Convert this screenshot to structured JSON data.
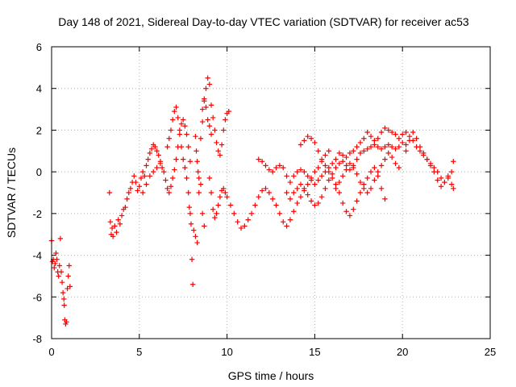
{
  "chart_data": {
    "type": "scatter",
    "title": "Day 148 of 2021, Sidereal Day-to-day VTEC variation (SDTVAR) for receiver ac53",
    "xlabel": "GPS time / hours",
    "ylabel": "SDTVAR / TECUs",
    "xlim": [
      0,
      25
    ],
    "ylim": [
      -8,
      6
    ],
    "xticks": [
      0,
      5,
      10,
      15,
      20,
      25
    ],
    "xtick_labels": [
      "0",
      "5",
      "10",
      "15",
      "20",
      "25"
    ],
    "yticks": [
      -8,
      -6,
      -4,
      -2,
      0,
      2,
      4,
      6
    ],
    "ytick_labels": [
      "-8",
      "-6",
      "-4",
      "-2",
      "0",
      "2",
      "4",
      "6"
    ],
    "grid": true,
    "marker": "+",
    "series": [
      {
        "name": "SDTVAR",
        "color": "#ff0000",
        "points": [
          [
            0.0,
            -3.3
          ],
          [
            0.05,
            -4.3
          ],
          [
            0.1,
            -4.2
          ],
          [
            0.15,
            -4.6
          ],
          [
            0.2,
            -4.4
          ],
          [
            0.25,
            -3.9
          ],
          [
            0.3,
            -4.2
          ],
          [
            0.35,
            -4.8
          ],
          [
            0.4,
            -5.0
          ],
          [
            0.45,
            -4.5
          ],
          [
            0.5,
            -3.2
          ],
          [
            0.55,
            -4.8
          ],
          [
            0.6,
            -5.3
          ],
          [
            0.65,
            -5.8
          ],
          [
            0.7,
            -6.1
          ],
          [
            0.72,
            -6.4
          ],
          [
            0.75,
            -7.1
          ],
          [
            0.8,
            -7.3
          ],
          [
            0.85,
            -7.2
          ],
          [
            0.9,
            -5.6
          ],
          [
            0.95,
            -5.0
          ],
          [
            1.0,
            -4.5
          ],
          [
            1.05,
            -5.5
          ],
          [
            3.3,
            -1.0
          ],
          [
            3.35,
            -2.4
          ],
          [
            3.4,
            -3.0
          ],
          [
            3.45,
            -2.7
          ],
          [
            3.5,
            -3.1
          ],
          [
            3.6,
            -2.6
          ],
          [
            3.7,
            -2.9
          ],
          [
            3.8,
            -2.3
          ],
          [
            3.9,
            -2.5
          ],
          [
            4.0,
            -2.1
          ],
          [
            4.1,
            -1.8
          ],
          [
            4.2,
            -1.7
          ],
          [
            4.3,
            -1.3
          ],
          [
            4.4,
            -1.0
          ],
          [
            4.5,
            -0.8
          ],
          [
            4.6,
            -0.5
          ],
          [
            4.7,
            -0.2
          ],
          [
            4.8,
            -0.5
          ],
          [
            4.9,
            -0.9
          ],
          [
            5.0,
            -0.7
          ],
          [
            5.1,
            -0.3
          ],
          [
            5.2,
            0.0
          ],
          [
            5.3,
            -0.2
          ],
          [
            5.4,
            0.3
          ],
          [
            5.5,
            0.6
          ],
          [
            5.6,
            0.9
          ],
          [
            5.7,
            1.1
          ],
          [
            5.8,
            1.3
          ],
          [
            5.9,
            1.2
          ],
          [
            6.0,
            1.0
          ],
          [
            6.1,
            0.8
          ],
          [
            6.2,
            0.5
          ],
          [
            6.3,
            0.2
          ],
          [
            5.2,
            -1.0
          ],
          [
            5.4,
            -0.6
          ],
          [
            5.6,
            -0.2
          ],
          [
            5.8,
            0.0
          ],
          [
            6.0,
            0.2
          ],
          [
            6.2,
            0.4
          ],
          [
            6.4,
            0.0
          ],
          [
            6.5,
            -0.4
          ],
          [
            6.6,
            -0.8
          ],
          [
            6.7,
            -1.0
          ],
          [
            6.8,
            -0.7
          ],
          [
            6.9,
            -0.3
          ],
          [
            7.0,
            0.1
          ],
          [
            7.1,
            0.6
          ],
          [
            7.2,
            1.2
          ],
          [
            7.3,
            1.8
          ],
          [
            7.4,
            2.3
          ],
          [
            7.5,
            2.5
          ],
          [
            7.6,
            2.2
          ],
          [
            7.7,
            1.8
          ],
          [
            7.8,
            1.2
          ],
          [
            7.9,
            0.5
          ],
          [
            6.6,
            1.2
          ],
          [
            6.7,
            1.6
          ],
          [
            6.8,
            2.0
          ],
          [
            6.9,
            2.5
          ],
          [
            7.0,
            2.9
          ],
          [
            7.1,
            3.1
          ],
          [
            7.2,
            2.6
          ],
          [
            7.3,
            2.0
          ],
          [
            7.4,
            1.2
          ],
          [
            7.5,
            0.6
          ],
          [
            7.6,
            0.2
          ],
          [
            7.7,
            -0.3
          ],
          [
            7.8,
            -1.0
          ],
          [
            7.85,
            -1.7
          ],
          [
            7.9,
            -2.0
          ],
          [
            7.95,
            -2.5
          ],
          [
            8.0,
            -4.2
          ],
          [
            8.05,
            -5.4
          ],
          [
            8.1,
            -2.8
          ],
          [
            8.2,
            -3.1
          ],
          [
            8.3,
            -3.4
          ],
          [
            8.4,
            -1.0
          ],
          [
            8.5,
            -0.6
          ],
          [
            8.6,
            -2.0
          ],
          [
            8.7,
            -2.6
          ],
          [
            8.2,
            1.7
          ],
          [
            8.25,
            1.0
          ],
          [
            8.3,
            0.5
          ],
          [
            8.35,
            0.0
          ],
          [
            8.4,
            -0.3
          ],
          [
            8.5,
            1.6
          ],
          [
            8.6,
            2.4
          ],
          [
            8.7,
            3.4
          ],
          [
            8.8,
            4.0
          ],
          [
            8.9,
            4.5
          ],
          [
            9.0,
            4.2
          ],
          [
            9.1,
            3.2
          ],
          [
            9.2,
            2.6
          ],
          [
            9.3,
            2.0
          ],
          [
            9.4,
            1.4
          ],
          [
            9.5,
            1.0
          ],
          [
            9.6,
            0.8
          ],
          [
            9.7,
            1.3
          ],
          [
            9.8,
            2.0
          ],
          [
            9.9,
            2.5
          ],
          [
            10.0,
            2.8
          ],
          [
            10.1,
            2.9
          ],
          [
            8.6,
            3.0
          ],
          [
            8.7,
            3.5
          ],
          [
            8.8,
            3.1
          ],
          [
            8.9,
            2.5
          ],
          [
            9.0,
            2.2
          ],
          [
            9.1,
            1.8
          ],
          [
            9.0,
            -0.3
          ],
          [
            9.1,
            -1.0
          ],
          [
            9.2,
            -1.8
          ],
          [
            9.3,
            -2.2
          ],
          [
            9.4,
            -2.0
          ],
          [
            9.5,
            -1.6
          ],
          [
            9.6,
            -1.2
          ],
          [
            9.7,
            -0.9
          ],
          [
            9.8,
            -0.8
          ],
          [
            9.9,
            -1.0
          ],
          [
            10.0,
            -1.2
          ],
          [
            10.2,
            -1.6
          ],
          [
            10.4,
            -2.0
          ],
          [
            10.6,
            -2.4
          ],
          [
            10.8,
            -2.7
          ],
          [
            11.0,
            -2.6
          ],
          [
            11.2,
            -2.3
          ],
          [
            11.4,
            -2.0
          ],
          [
            11.6,
            -1.6
          ],
          [
            11.8,
            -1.2
          ],
          [
            12.0,
            -0.9
          ],
          [
            12.2,
            -0.8
          ],
          [
            12.4,
            -1.0
          ],
          [
            12.6,
            -1.3
          ],
          [
            12.8,
            -1.6
          ],
          [
            13.0,
            -2.0
          ],
          [
            13.2,
            -2.4
          ],
          [
            13.4,
            -2.6
          ],
          [
            13.6,
            -2.3
          ],
          [
            13.8,
            -1.9
          ],
          [
            14.0,
            -1.5
          ],
          [
            14.2,
            -1.2
          ],
          [
            14.4,
            -0.9
          ],
          [
            14.6,
            -0.6
          ],
          [
            14.8,
            -0.3
          ],
          [
            15.0,
            0.0
          ],
          [
            15.2,
            0.2
          ],
          [
            15.4,
            0.5
          ],
          [
            15.6,
            0.8
          ],
          [
            15.8,
            1.0
          ],
          [
            11.8,
            0.6
          ],
          [
            12.0,
            0.5
          ],
          [
            12.2,
            0.3
          ],
          [
            12.4,
            0.1
          ],
          [
            12.6,
            0.0
          ],
          [
            12.8,
            0.2
          ],
          [
            13.0,
            0.3
          ],
          [
            13.2,
            0.2
          ],
          [
            13.4,
            -0.2
          ],
          [
            13.6,
            -0.5
          ],
          [
            13.8,
            -0.2
          ],
          [
            14.0,
            0.0
          ],
          [
            14.2,
            0.1
          ],
          [
            14.4,
            0.0
          ],
          [
            14.6,
            -0.2
          ],
          [
            14.8,
            -0.4
          ],
          [
            15.0,
            -0.6
          ],
          [
            15.2,
            -0.4
          ],
          [
            15.4,
            -0.2
          ],
          [
            15.6,
            0.0
          ],
          [
            15.8,
            0.2
          ],
          [
            16.0,
            0.4
          ],
          [
            16.2,
            0.6
          ],
          [
            16.4,
            0.9
          ],
          [
            16.6,
            0.8
          ],
          [
            16.8,
            0.7
          ],
          [
            17.0,
            0.9
          ],
          [
            17.2,
            1.0
          ],
          [
            17.4,
            1.2
          ],
          [
            17.6,
            1.4
          ],
          [
            17.8,
            1.6
          ],
          [
            18.0,
            1.9
          ],
          [
            18.2,
            1.7
          ],
          [
            18.4,
            1.5
          ],
          [
            18.6,
            1.6
          ],
          [
            18.8,
            1.9
          ],
          [
            19.0,
            2.1
          ],
          [
            19.2,
            2.0
          ],
          [
            19.4,
            1.9
          ],
          [
            19.6,
            1.8
          ],
          [
            19.8,
            1.6
          ],
          [
            20.0,
            1.8
          ],
          [
            20.2,
            1.9
          ],
          [
            20.4,
            1.7
          ],
          [
            20.6,
            1.5
          ],
          [
            20.8,
            1.2
          ],
          [
            21.0,
            1.0
          ],
          [
            21.2,
            0.8
          ],
          [
            21.4,
            0.6
          ],
          [
            21.6,
            0.4
          ],
          [
            21.8,
            0.2
          ],
          [
            22.0,
            0.0
          ],
          [
            22.2,
            -0.3
          ],
          [
            22.4,
            -0.5
          ],
          [
            22.6,
            -0.3
          ],
          [
            22.8,
            0.0
          ],
          [
            22.9,
            0.5
          ],
          [
            13.4,
            -1.0
          ],
          [
            13.6,
            -1.3
          ],
          [
            13.8,
            -1.0
          ],
          [
            14.0,
            -0.8
          ],
          [
            14.2,
            -0.6
          ],
          [
            14.4,
            -0.8
          ],
          [
            14.6,
            -1.1
          ],
          [
            14.8,
            -1.4
          ],
          [
            15.0,
            -1.6
          ],
          [
            15.2,
            -1.5
          ],
          [
            15.4,
            -1.2
          ],
          [
            15.6,
            -0.8
          ],
          [
            15.8,
            -0.4
          ],
          [
            16.0,
            -0.1
          ],
          [
            16.2,
            0.2
          ],
          [
            16.4,
            0.4
          ],
          [
            16.6,
            0.5
          ],
          [
            16.8,
            0.3
          ],
          [
            17.0,
            0.1
          ],
          [
            17.2,
            0.3
          ],
          [
            17.4,
            0.6
          ],
          [
            17.6,
            0.9
          ],
          [
            17.8,
            1.0
          ],
          [
            18.0,
            1.1
          ],
          [
            18.2,
            1.2
          ],
          [
            18.4,
            1.3
          ],
          [
            18.6,
            1.2
          ],
          [
            18.8,
            1.1
          ],
          [
            19.0,
            1.2
          ],
          [
            19.2,
            1.3
          ],
          [
            19.4,
            1.2
          ],
          [
            19.6,
            1.1
          ],
          [
            19.8,
            1.2
          ],
          [
            20.0,
            1.4
          ],
          [
            20.2,
            1.3
          ],
          [
            14.2,
            1.3
          ],
          [
            14.4,
            1.5
          ],
          [
            14.6,
            1.7
          ],
          [
            14.8,
            1.6
          ],
          [
            15.0,
            1.4
          ],
          [
            15.2,
            1.0
          ],
          [
            15.4,
            0.6
          ],
          [
            15.6,
            0.3
          ],
          [
            15.8,
            0.0
          ],
          [
            16.0,
            -0.3
          ],
          [
            16.2,
            -0.6
          ],
          [
            16.4,
            -1.0
          ],
          [
            16.6,
            -1.5
          ],
          [
            16.8,
            -1.9
          ],
          [
            17.0,
            -2.1
          ],
          [
            17.2,
            -1.8
          ],
          [
            17.4,
            -1.4
          ],
          [
            17.6,
            -1.0
          ],
          [
            17.8,
            -0.6
          ],
          [
            18.0,
            -0.3
          ],
          [
            18.2,
            0.0
          ],
          [
            18.4,
            0.2
          ],
          [
            18.6,
            -0.2
          ],
          [
            18.8,
            -0.8
          ],
          [
            19.0,
            -1.3
          ],
          [
            16.2,
            -0.8
          ],
          [
            16.4,
            -0.5
          ],
          [
            16.6,
            -0.2
          ],
          [
            16.8,
            0.1
          ],
          [
            17.0,
            0.4
          ],
          [
            17.2,
            0.2
          ],
          [
            17.4,
            -0.1
          ],
          [
            17.6,
            -0.5
          ],
          [
            17.8,
            -0.8
          ],
          [
            18.0,
            -1.0
          ],
          [
            18.2,
            -0.8
          ],
          [
            18.4,
            -0.4
          ],
          [
            18.6,
            0.0
          ],
          [
            18.8,
            0.3
          ],
          [
            19.0,
            0.6
          ],
          [
            19.2,
            0.9
          ],
          [
            19.4,
            0.7
          ],
          [
            19.6,
            0.4
          ],
          [
            19.8,
            0.2
          ],
          [
            20.2,
            1.0
          ],
          [
            20.4,
            1.5
          ],
          [
            20.6,
            1.9
          ],
          [
            20.8,
            1.6
          ],
          [
            21.0,
            1.2
          ],
          [
            21.2,
            0.9
          ],
          [
            21.4,
            0.6
          ],
          [
            21.6,
            0.3
          ],
          [
            21.8,
            0.0
          ],
          [
            22.0,
            -0.4
          ],
          [
            22.2,
            -0.7
          ],
          [
            22.4,
            -0.5
          ],
          [
            22.6,
            -0.2
          ],
          [
            22.8,
            -0.6
          ],
          [
            22.9,
            -0.8
          ]
        ]
      }
    ]
  }
}
